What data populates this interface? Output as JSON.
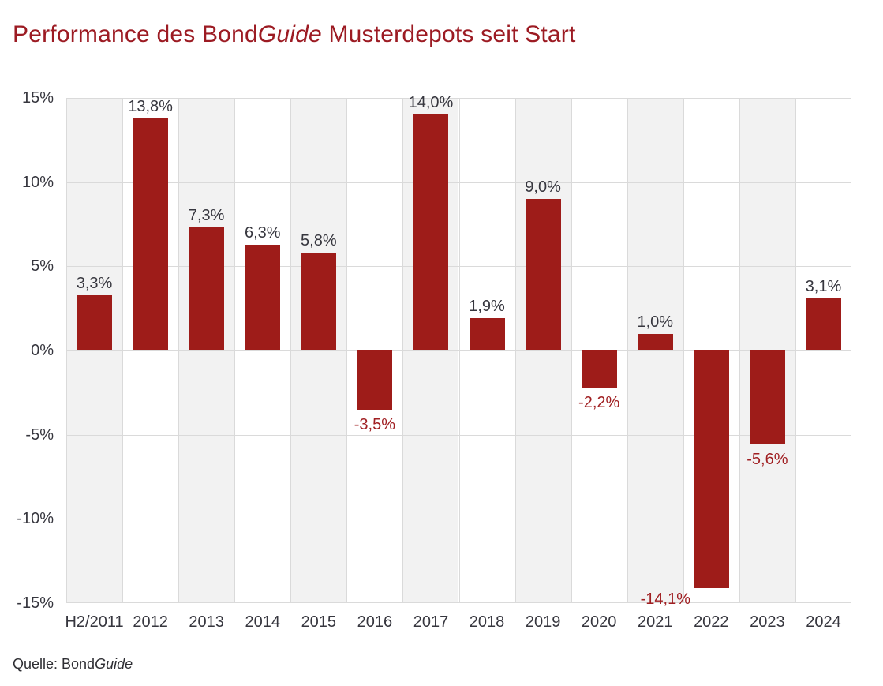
{
  "page": {
    "title": {
      "pre": "Performance des Bond",
      "it": "Guide",
      "post": " Musterdepots seit Start"
    },
    "source": {
      "pre": "Quelle: Bond",
      "it": "Guide"
    }
  },
  "chart_data": {
    "type": "bar",
    "title": "Performance des BondGuide Musterdepots seit Start",
    "source": "Quelle: BondGuide",
    "categories": [
      "H2/2011",
      "2012",
      "2013",
      "2014",
      "2015",
      "2016",
      "2017",
      "2018",
      "2019",
      "2020",
      "2021",
      "2022",
      "2023",
      "2024"
    ],
    "values": [
      3.3,
      13.8,
      7.3,
      6.3,
      5.8,
      -3.5,
      14.0,
      1.9,
      9.0,
      -2.2,
      1.0,
      -14.1,
      -5.6,
      3.1
    ],
    "value_labels": [
      "3,3%",
      "13,8%",
      "7,3%",
      "6,3%",
      "5,8%",
      "-3,5%",
      "14,0%",
      "1,9%",
      "9,0%",
      "-2,2%",
      "1,0%",
      "-14,1%",
      "-5,6%",
      "3,1%"
    ],
    "xlabel": "",
    "ylabel": "",
    "ylim": [
      -15,
      15
    ],
    "yticks": [
      15,
      10,
      5,
      0,
      -5,
      -10,
      -15
    ],
    "ytick_labels": [
      "15%",
      "10%",
      "5%",
      "0%",
      "-5%",
      "-10%",
      "-15%"
    ],
    "grid": true,
    "legend": false,
    "plot_style": "alternating vertical column stripes, first column shaded",
    "colors": {
      "bar": "#9e1c19",
      "title_text": "#9c1b23",
      "negative_value_label": "#a01f22",
      "positive_value_label": "#36363e",
      "axis_text": "#36363e",
      "column_stripe": "#f2f2f2",
      "gridline": "#dadada",
      "background": "#ffffff"
    }
  }
}
